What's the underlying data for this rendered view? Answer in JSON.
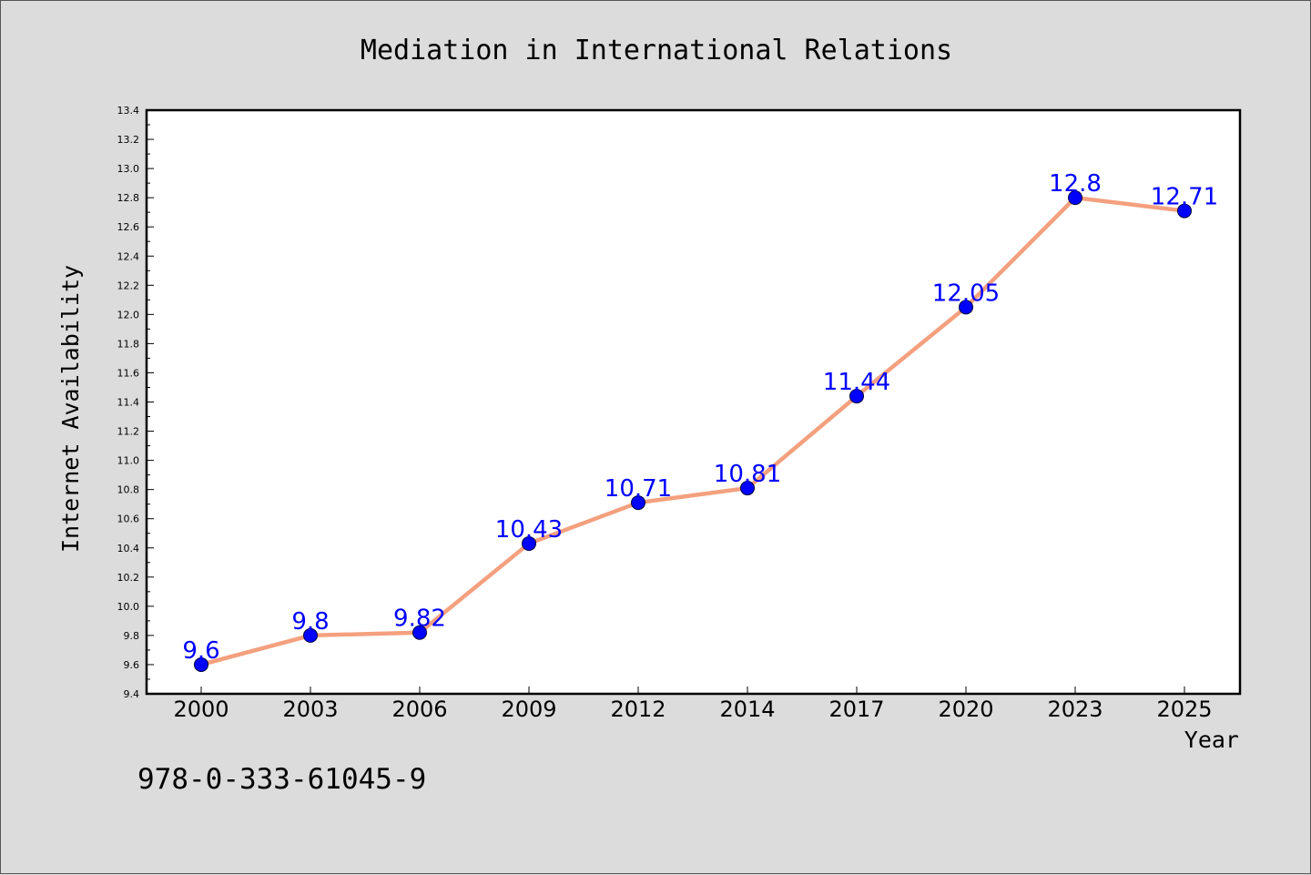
{
  "chart_data": {
    "type": "line",
    "title": "Mediation in International Relations",
    "xlabel": "Year",
    "ylabel": "Internet Availability",
    "categories": [
      "2000",
      "2003",
      "2006",
      "2009",
      "2012",
      "2014",
      "2017",
      "2020",
      "2023",
      "2025"
    ],
    "series": [
      {
        "values": [
          9.6,
          9.8,
          9.82,
          10.43,
          10.71,
          10.81,
          11.44,
          12.05,
          12.8,
          12.71
        ],
        "data_labels": [
          "9.6",
          "9.8",
          "9.82",
          "10.43",
          "10.71",
          "10.81",
          "11.44",
          "12.05",
          "12.8",
          "12.71"
        ],
        "line_color": "#f4a07e",
        "marker_color": "#0000ff"
      }
    ],
    "ylim": [
      9.4,
      13.4
    ],
    "yticks": [
      "9.4",
      "9.6",
      "9.8",
      "10.0",
      "10.2",
      "10.4",
      "10.6",
      "10.8",
      "11.0",
      "11.2",
      "11.4",
      "11.6",
      "11.8",
      "12.0",
      "12.2",
      "12.4",
      "12.6",
      "12.8",
      "13.0",
      "13.2",
      "13.4"
    ],
    "grid": false,
    "legend": "none"
  },
  "footnote": "978-0-333-61045-9",
  "colors": {
    "background": "#dcdcdc",
    "plot_background": "#ffffff",
    "line": "#f4a07e",
    "marker": "#0000ff",
    "data_label": "#0000ff"
  }
}
